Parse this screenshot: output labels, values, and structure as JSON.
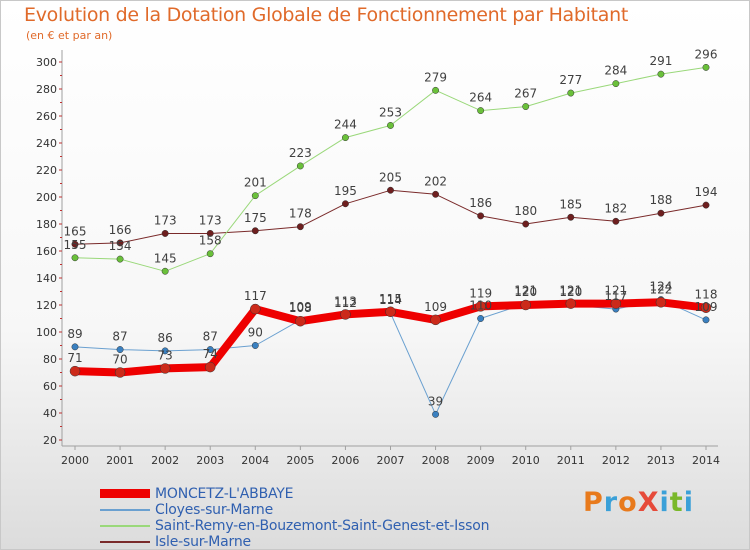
{
  "header": {
    "title": "Evolution de la Dotation Globale de Fonctionnement par Habitant",
    "subtitle": "(en € et par an)"
  },
  "brand": {
    "text": "ProXiti",
    "colors": [
      "#e87a1c",
      "#3aa0d8",
      "#e87a1c",
      "#e64a3a",
      "#3aa0d8",
      "#7ab82a",
      "#3aa0d8"
    ]
  },
  "colors": {
    "title": "#e06a2a",
    "axis": "#a0a0a0",
    "tick_label": "#333333",
    "point_label": "#404040",
    "legend_text": "#3060b0"
  },
  "chart_data": {
    "type": "line",
    "x": [
      "2000",
      "2001",
      "2002",
      "2003",
      "2004",
      "2005",
      "2006",
      "2007",
      "2008",
      "2009",
      "2010",
      "2011",
      "2012",
      "2013",
      "2014"
    ],
    "ylim": [
      20,
      300
    ],
    "yticks": [
      20,
      40,
      60,
      80,
      100,
      120,
      140,
      160,
      180,
      200,
      220,
      240,
      260,
      280,
      300
    ],
    "grid": false,
    "legend_position": "bottom",
    "series": [
      {
        "name": "Isle-sur-Marne",
        "color": "#7a2a2a",
        "width": 1,
        "marker": "#6e1f1f",
        "values": [
          165,
          166,
          173,
          173,
          175,
          178,
          195,
          205,
          202,
          186,
          180,
          185,
          182,
          188,
          194
        ],
        "labels": [
          "165",
          "166",
          "173",
          "173",
          "175",
          "178",
          "195",
          "205",
          "202",
          "186",
          "180",
          "185",
          "182",
          "188",
          "194"
        ]
      },
      {
        "name": "Saint-Remy-en-Bouzemont-Saint-Genest-et-Isson",
        "color": "#9ad87a",
        "width": 1,
        "marker": "#6ac03a",
        "values": [
          155,
          154,
          145,
          158,
          201,
          223,
          244,
          253,
          279,
          264,
          267,
          277,
          284,
          291,
          296
        ],
        "labels": [
          "155",
          "154",
          "145",
          "158",
          "201",
          "223",
          "244",
          "253",
          "279",
          "264",
          "267",
          "277",
          "284",
          "291",
          "296"
        ]
      },
      {
        "name": "Cloyes-sur-Marne",
        "color": "#6aa0d0",
        "width": 1,
        "marker": "#3a80c0",
        "values": [
          89,
          87,
          86,
          87,
          90,
          109,
          112,
          114,
          39,
          110,
          121,
          120,
          117,
          124,
          109
        ],
        "labels": [
          "89",
          "87",
          "86",
          "87",
          "90",
          "109",
          "112",
          "114",
          "39",
          "110",
          "121",
          "120",
          "117",
          "124",
          "109"
        ]
      },
      {
        "name": "MONCETZ-L'ABBAYE",
        "color": "#ee0000",
        "width": 8,
        "marker": "#cc2a1a",
        "values": [
          71,
          70,
          73,
          74,
          117,
          108,
          113,
          115,
          109,
          119,
          120,
          121,
          121,
          122,
          118
        ],
        "labels": [
          "71",
          "70",
          "73",
          "74",
          "117",
          "108",
          "113",
          "115",
          "109",
          "119",
          "120",
          "121",
          "121",
          "122",
          "118"
        ]
      }
    ],
    "legend_order": [
      "MONCETZ-L'ABBAYE",
      "Cloyes-sur-Marne",
      "Saint-Remy-en-Bouzemont-Saint-Genest-et-Isson",
      "Isle-sur-Marne"
    ]
  }
}
